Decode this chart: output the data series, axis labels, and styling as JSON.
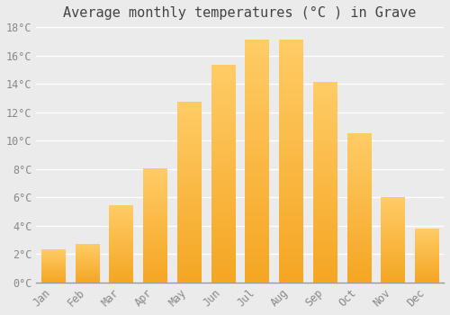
{
  "title": "Average monthly temperatures (°C ) in Grave",
  "months": [
    "Jan",
    "Feb",
    "Mar",
    "Apr",
    "May",
    "Jun",
    "Jul",
    "Aug",
    "Sep",
    "Oct",
    "Nov",
    "Dec"
  ],
  "values": [
    2.3,
    2.7,
    5.4,
    8.0,
    12.7,
    15.3,
    17.1,
    17.1,
    14.1,
    10.5,
    6.0,
    3.8
  ],
  "bar_color_bottom": "#F5A623",
  "bar_color_top": "#FFCC66",
  "ylim": [
    0,
    18
  ],
  "yticks": [
    0,
    2,
    4,
    6,
    8,
    10,
    12,
    14,
    16,
    18
  ],
  "ytick_labels": [
    "0°C",
    "2°C",
    "4°C",
    "6°C",
    "8°C",
    "10°C",
    "12°C",
    "14°C",
    "16°C",
    "18°C"
  ],
  "background_color": "#ebebeb",
  "grid_color": "#ffffff",
  "title_fontsize": 11,
  "tick_fontsize": 8.5,
  "bar_width": 0.7
}
